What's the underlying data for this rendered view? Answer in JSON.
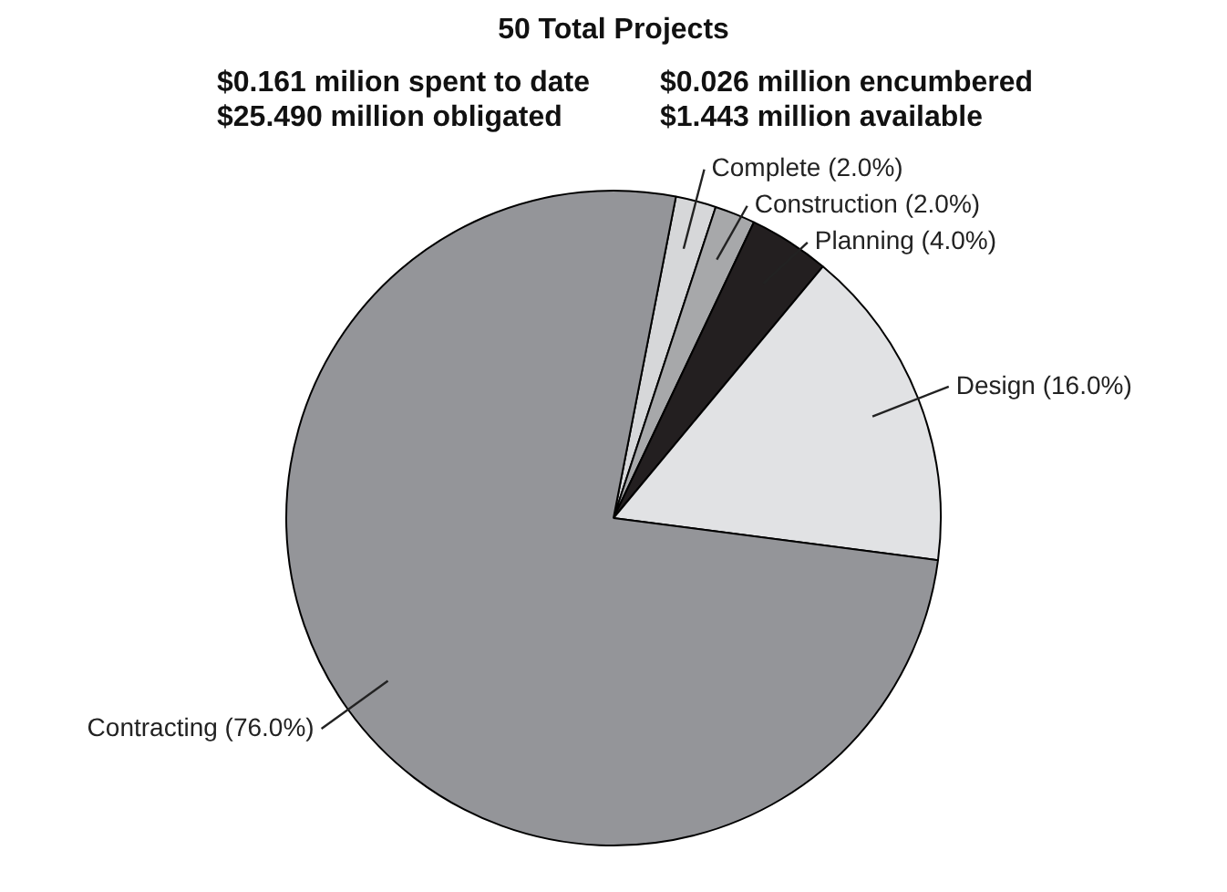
{
  "chart_data": {
    "type": "pie",
    "title": "50 Total Projects",
    "annotations": [
      "$0.161 milion spent to date",
      "$0.026 million encumbered",
      "$25.490 million obligated",
      "$1.443 million available"
    ],
    "categories": [
      "Complete",
      "Construction",
      "Planning",
      "Design",
      "Contracting"
    ],
    "values": [
      2,
      2,
      4,
      16,
      76
    ],
    "value_labels": [
      "(2.0%)",
      "(2.0%)",
      "(4.0%)",
      "(16.0%)",
      "(76.0%)"
    ],
    "colors": [
      "#d6d7d9",
      "#a7a8aa",
      "#231f20",
      "#e1e2e4",
      "#949599"
    ],
    "legend": false
  }
}
